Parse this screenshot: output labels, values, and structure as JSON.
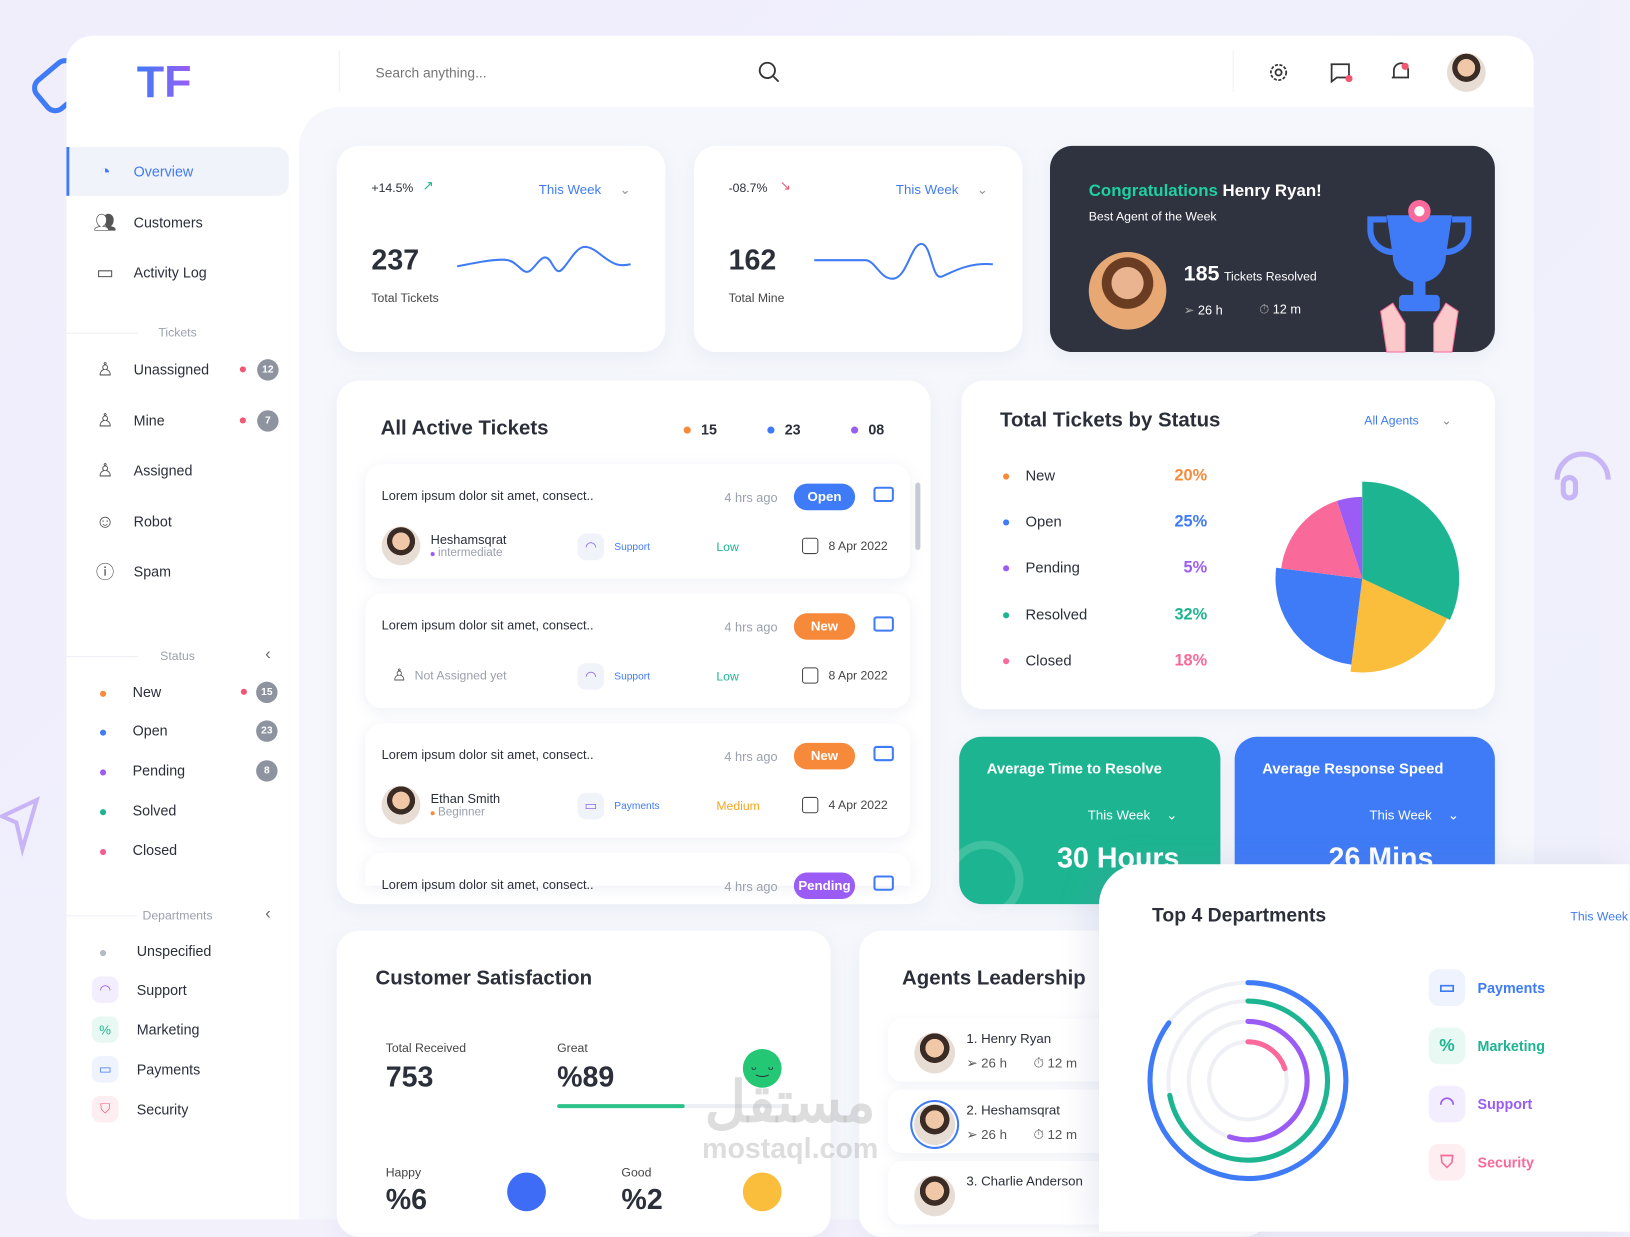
{
  "brand": {
    "logo_text": "TF"
  },
  "header": {
    "search_placeholder": "Search anything..."
  },
  "sidebar": {
    "nav": [
      {
        "label": "Overview",
        "icon": "pie-chart-icon"
      },
      {
        "label": "Customers",
        "icon": "users-icon"
      },
      {
        "label": "Activity Log",
        "icon": "monitor-pulse-icon"
      }
    ],
    "tickets_heading": "Tickets",
    "tickets": [
      {
        "label": "Unassigned",
        "count": "12"
      },
      {
        "label": "Mine",
        "count": "7"
      },
      {
        "label": "Assigned"
      },
      {
        "label": "Robot"
      },
      {
        "label": "Spam"
      }
    ],
    "status_heading": "Status",
    "status": [
      {
        "label": "New",
        "count": "15",
        "color": "#f7893b"
      },
      {
        "label": "Open",
        "count": "23",
        "color": "#3f7bf6"
      },
      {
        "label": "Pending",
        "count": "8",
        "color": "#9b5cf6"
      },
      {
        "label": "Solved",
        "color": "#1db591"
      },
      {
        "label": "Closed",
        "color": "#f25c8f"
      }
    ],
    "departments_heading": "Departments",
    "departments": [
      {
        "label": "Unspecified"
      },
      {
        "label": "Support"
      },
      {
        "label": "Marketing"
      },
      {
        "label": "Payments"
      },
      {
        "label": "Security"
      }
    ]
  },
  "stats": [
    {
      "change": "+14.5%",
      "trend": "up",
      "period": "This Week",
      "value": "237",
      "label": "Total Tickets"
    },
    {
      "change": "-08.7%",
      "trend": "down",
      "period": "This Week",
      "value": "162",
      "label": "Total Mine"
    }
  ],
  "congrats": {
    "prefix": "Congratulations",
    "name": "Henry Ryan!",
    "subtitle": "Best Agent of the Week",
    "tickets": "185",
    "tickets_label": "Tickets Resolved",
    "hours": "26 h",
    "minutes": "12 m"
  },
  "active_tickets": {
    "title": "All Active Tickets",
    "counts": [
      {
        "value": "15",
        "color": "#f7893b"
      },
      {
        "value": "23",
        "color": "#3f7bf6"
      },
      {
        "value": "08",
        "color": "#9b5cf6"
      }
    ],
    "items": [
      {
        "title": "Lorem ipsum dolor sit amet, consect..",
        "ago": "4 hrs ago",
        "status": "Open",
        "status_color": "#3f7bf6",
        "assignee": "Heshamsqrat",
        "level": "intermediate",
        "level_color": "#9b5cf6",
        "category": "Support",
        "priority": "Low",
        "priority_color": "#1db591",
        "date": "8 Apr 2022"
      },
      {
        "title": "Lorem ipsum dolor sit amet, consect..",
        "ago": "4 hrs ago",
        "status": "New",
        "status_color": "#f7893b",
        "assignee": "Not Assigned yet",
        "category": "Support",
        "priority": "Low",
        "priority_color": "#1db591",
        "date": "8 Apr 2022"
      },
      {
        "title": "Lorem ipsum dolor sit amet, consect..",
        "ago": "4 hrs ago",
        "status": "New",
        "status_color": "#f7893b",
        "assignee": "Ethan Smith",
        "level": "Beginner",
        "level_color": "#f7893b",
        "category": "Payments",
        "priority": "Medium",
        "priority_color": "#f5a623",
        "date": "4 Apr 2022"
      },
      {
        "title": "Lorem ipsum dolor sit amet, consect..",
        "ago": "4 hrs ago",
        "status": "Pending",
        "status_color": "#9b5cf6"
      }
    ]
  },
  "status_chart": {
    "title": "Total Tickets by Status",
    "filter": "All Agents"
  },
  "chart_data": {
    "type": "pie",
    "title": "Total Tickets by Status",
    "categories": [
      "New",
      "Open",
      "Pending",
      "Resolved",
      "Closed"
    ],
    "values": [
      20,
      25,
      5,
      32,
      18
    ],
    "colors": [
      "#fbbd3c",
      "#3f7bf6",
      "#9b5cf6",
      "#1db591",
      "#f96a9a"
    ],
    "legend_colors": [
      "#f7893b",
      "#3f7bf6",
      "#9b5cf6",
      "#1db591",
      "#f96a9a"
    ],
    "labels": [
      "20%",
      "25%",
      "5%",
      "32%",
      "18%"
    ],
    "legend": "left"
  },
  "avg_resolve": {
    "title": "Average Time to Resolve",
    "period": "This Week",
    "value": "30 Hours"
  },
  "avg_response": {
    "title": "Average Response Speed",
    "period": "This Week",
    "value": "26 Mins"
  },
  "satisfaction": {
    "title": "Customer Satisfaction",
    "total_label": "Total Received",
    "total": "753",
    "great_label": "Great",
    "great": "%89",
    "great_progress": 0.89,
    "happy_label": "Happy",
    "happy": "%6",
    "good_label": "Good",
    "good": "%2"
  },
  "leaders": {
    "title": "Agents Leadership",
    "items": [
      {
        "name": "1. Henry Ryan",
        "hours": "26 h",
        "minutes": "12 m"
      },
      {
        "name": "2. Heshamsqrat",
        "hours": "26 h",
        "minutes": "12 m"
      },
      {
        "name": "3. Charlie Anderson"
      }
    ]
  },
  "top_departments": {
    "title": "Top 4 Departments",
    "period": "This Week",
    "items": [
      {
        "label": "Payments",
        "color": "#3f7bf6",
        "share": 0.85
      },
      {
        "label": "Marketing",
        "color": "#1db591",
        "share": 0.72
      },
      {
        "label": "Support",
        "color": "#9b5cf6",
        "share": 0.55
      },
      {
        "label": "Security",
        "color": "#f96a9a",
        "share": 0.2
      }
    ]
  },
  "watermark": {
    "arabic": "مستقل",
    "latin": "mostaql.com"
  }
}
